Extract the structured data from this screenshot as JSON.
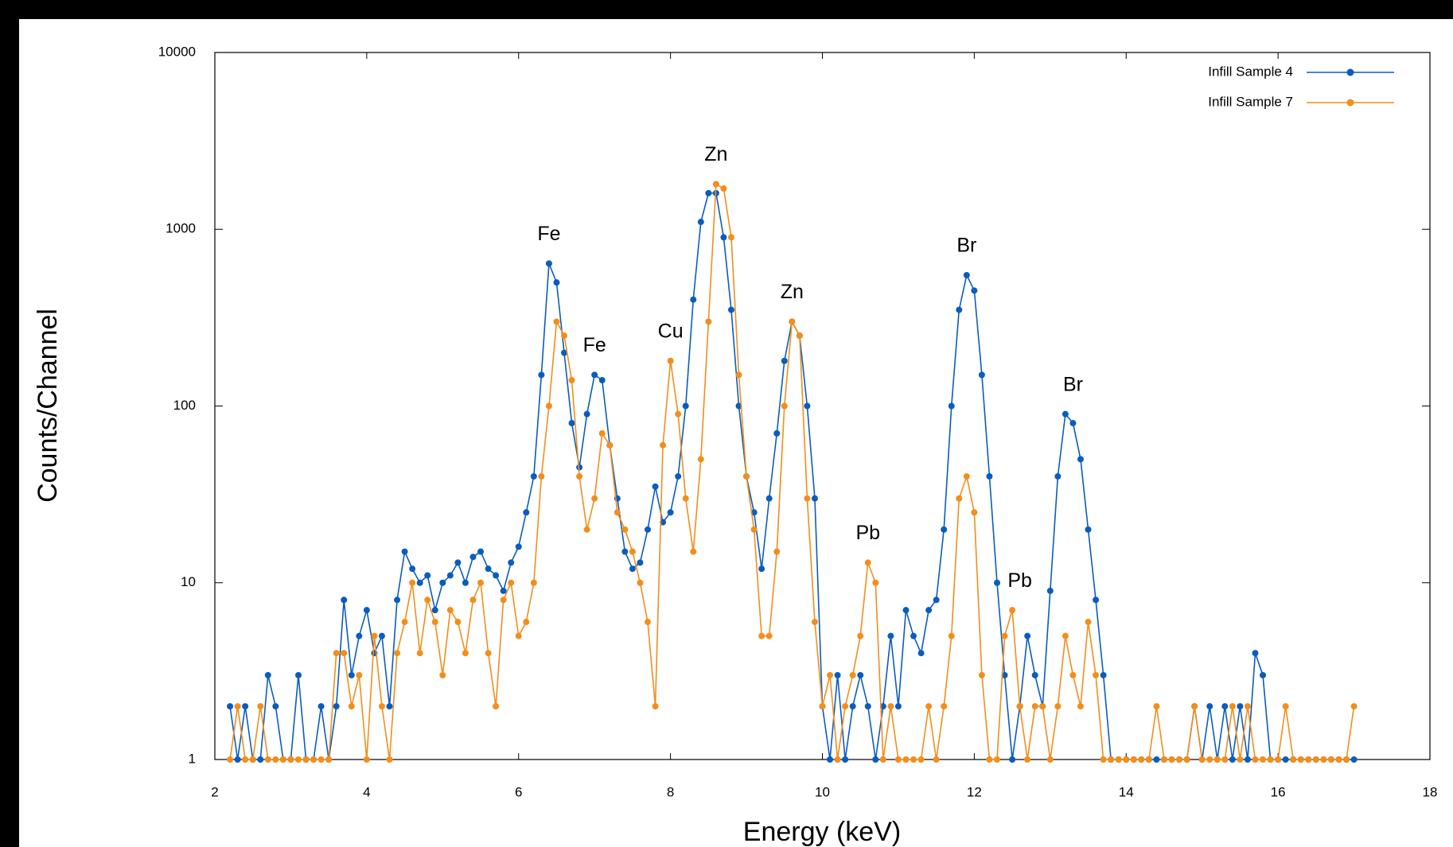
{
  "chart_data": {
    "type": "line",
    "xlabel": "Energy (keV)",
    "ylabel": "Counts/Channel",
    "xlim": [
      2,
      18
    ],
    "xticks": [
      2,
      4,
      6,
      8,
      10,
      12,
      14,
      16,
      18
    ],
    "ylim": [
      1,
      10000
    ],
    "yticks": [
      1,
      10,
      100,
      1000,
      10000
    ],
    "yscale": "log",
    "legend": "upper right",
    "x": [
      2.2,
      2.3,
      2.4,
      2.5,
      2.6,
      2.7,
      2.8,
      2.9,
      3.0,
      3.1,
      3.2,
      3.3,
      3.4,
      3.5,
      3.6,
      3.7,
      3.8,
      3.9,
      4.0,
      4.1,
      4.2,
      4.3,
      4.4,
      4.5,
      4.6,
      4.7,
      4.8,
      4.9,
      5.0,
      5.1,
      5.2,
      5.3,
      5.4,
      5.5,
      5.6,
      5.7,
      5.8,
      5.9,
      6.0,
      6.1,
      6.2,
      6.3,
      6.4,
      6.5,
      6.6,
      6.7,
      6.8,
      6.9,
      7.0,
      7.1,
      7.2,
      7.3,
      7.4,
      7.5,
      7.6,
      7.7,
      7.8,
      7.9,
      8.0,
      8.1,
      8.2,
      8.3,
      8.4,
      8.5,
      8.6,
      8.7,
      8.8,
      8.9,
      9.0,
      9.1,
      9.2,
      9.3,
      9.4,
      9.5,
      9.6,
      9.7,
      9.8,
      9.9,
      10.0,
      10.1,
      10.2,
      10.3,
      10.4,
      10.5,
      10.6,
      10.7,
      10.8,
      10.9,
      11.0,
      11.1,
      11.2,
      11.3,
      11.4,
      11.5,
      11.6,
      11.7,
      11.8,
      11.9,
      12.0,
      12.1,
      12.2,
      12.3,
      12.4,
      12.5,
      12.6,
      12.7,
      12.8,
      12.9,
      13.0,
      13.1,
      13.2,
      13.3,
      13.4,
      13.5,
      13.6,
      13.7,
      13.8,
      13.9,
      14.0,
      14.1,
      14.2,
      14.3,
      14.4,
      14.5,
      14.6,
      14.7,
      14.8,
      14.9,
      15.0,
      15.1,
      15.2,
      15.3,
      15.4,
      15.5,
      15.6,
      15.7,
      15.8,
      15.9,
      16.0,
      16.1,
      16.2,
      16.3,
      16.4,
      16.5,
      16.6,
      16.7,
      16.8,
      16.9,
      17.0
    ],
    "series": [
      {
        "name": "Infill Sample 4",
        "color": "#0a5cbf",
        "values": [
          2,
          1,
          2,
          1,
          1,
          3,
          2,
          1,
          1,
          3,
          1,
          1,
          2,
          1,
          2,
          8,
          3,
          5,
          7,
          4,
          5,
          2,
          8,
          15,
          12,
          10,
          11,
          7,
          10,
          11,
          13,
          10,
          14,
          15,
          12,
          11,
          9,
          13,
          16,
          25,
          40,
          150,
          640,
          500,
          200,
          80,
          45,
          90,
          150,
          140,
          60,
          30,
          15,
          12,
          13,
          20,
          35,
          22,
          25,
          40,
          100,
          400,
          1100,
          1600,
          1600,
          900,
          350,
          100,
          40,
          25,
          12,
          30,
          70,
          180,
          300,
          250,
          100,
          30,
          2,
          1,
          3,
          1,
          2,
          3,
          2,
          1,
          2,
          5,
          2,
          7,
          5,
          4,
          7,
          8,
          20,
          100,
          350,
          550,
          450,
          150,
          40,
          10,
          3,
          1,
          2,
          5,
          3,
          2,
          9,
          40,
          90,
          80,
          50,
          20,
          8,
          3,
          1,
          1,
          1,
          1,
          1,
          1,
          1,
          1,
          1,
          1,
          1,
          2,
          1,
          2,
          1,
          2,
          1,
          2,
          1,
          4,
          3,
          1,
          1,
          1,
          1,
          1,
          1,
          1,
          1,
          1,
          1,
          1,
          1
        ]
      },
      {
        "name": "Infill Sample 7",
        "color": "#f28e1c",
        "values": [
          1,
          2,
          1,
          1,
          2,
          1,
          1,
          1,
          1,
          1,
          1,
          1,
          1,
          1,
          4,
          4,
          2,
          3,
          1,
          5,
          2,
          1,
          4,
          6,
          10,
          4,
          8,
          6,
          3,
          7,
          6,
          4,
          8,
          10,
          4,
          2,
          8,
          10,
          5,
          6,
          10,
          40,
          100,
          300,
          250,
          140,
          40,
          20,
          30,
          70,
          60,
          25,
          20,
          15,
          10,
          6,
          2,
          60,
          180,
          90,
          30,
          15,
          50,
          300,
          1800,
          1700,
          900,
          150,
          40,
          20,
          5,
          5,
          15,
          100,
          300,
          250,
          30,
          6,
          2,
          3,
          1,
          2,
          3,
          5,
          13,
          10,
          1,
          2,
          1,
          1,
          1,
          1,
          2,
          1,
          2,
          5,
          30,
          40,
          25,
          3,
          1,
          1,
          5,
          7,
          2,
          1,
          2,
          2,
          1,
          2,
          5,
          3,
          2,
          6,
          3,
          1,
          1,
          1,
          1,
          1,
          1,
          1,
          2,
          1,
          1,
          1,
          1,
          2,
          1,
          1,
          1,
          1,
          2,
          1,
          2,
          1,
          1,
          1,
          1,
          2,
          1,
          1,
          1,
          1,
          1,
          1,
          1,
          1,
          2
        ]
      }
    ],
    "annotations": [
      {
        "text": "Fe",
        "x": 6.4
      },
      {
        "text": "Fe",
        "x": 7.0
      },
      {
        "text": "Cu",
        "x": 8.0
      },
      {
        "text": "Zn",
        "x": 8.6
      },
      {
        "text": "Zn",
        "x": 9.6
      },
      {
        "text": "Pb",
        "x": 10.6
      },
      {
        "text": "Br",
        "x": 11.9
      },
      {
        "text": "Pb",
        "x": 12.6
      },
      {
        "text": "Br",
        "x": 13.3
      }
    ]
  }
}
